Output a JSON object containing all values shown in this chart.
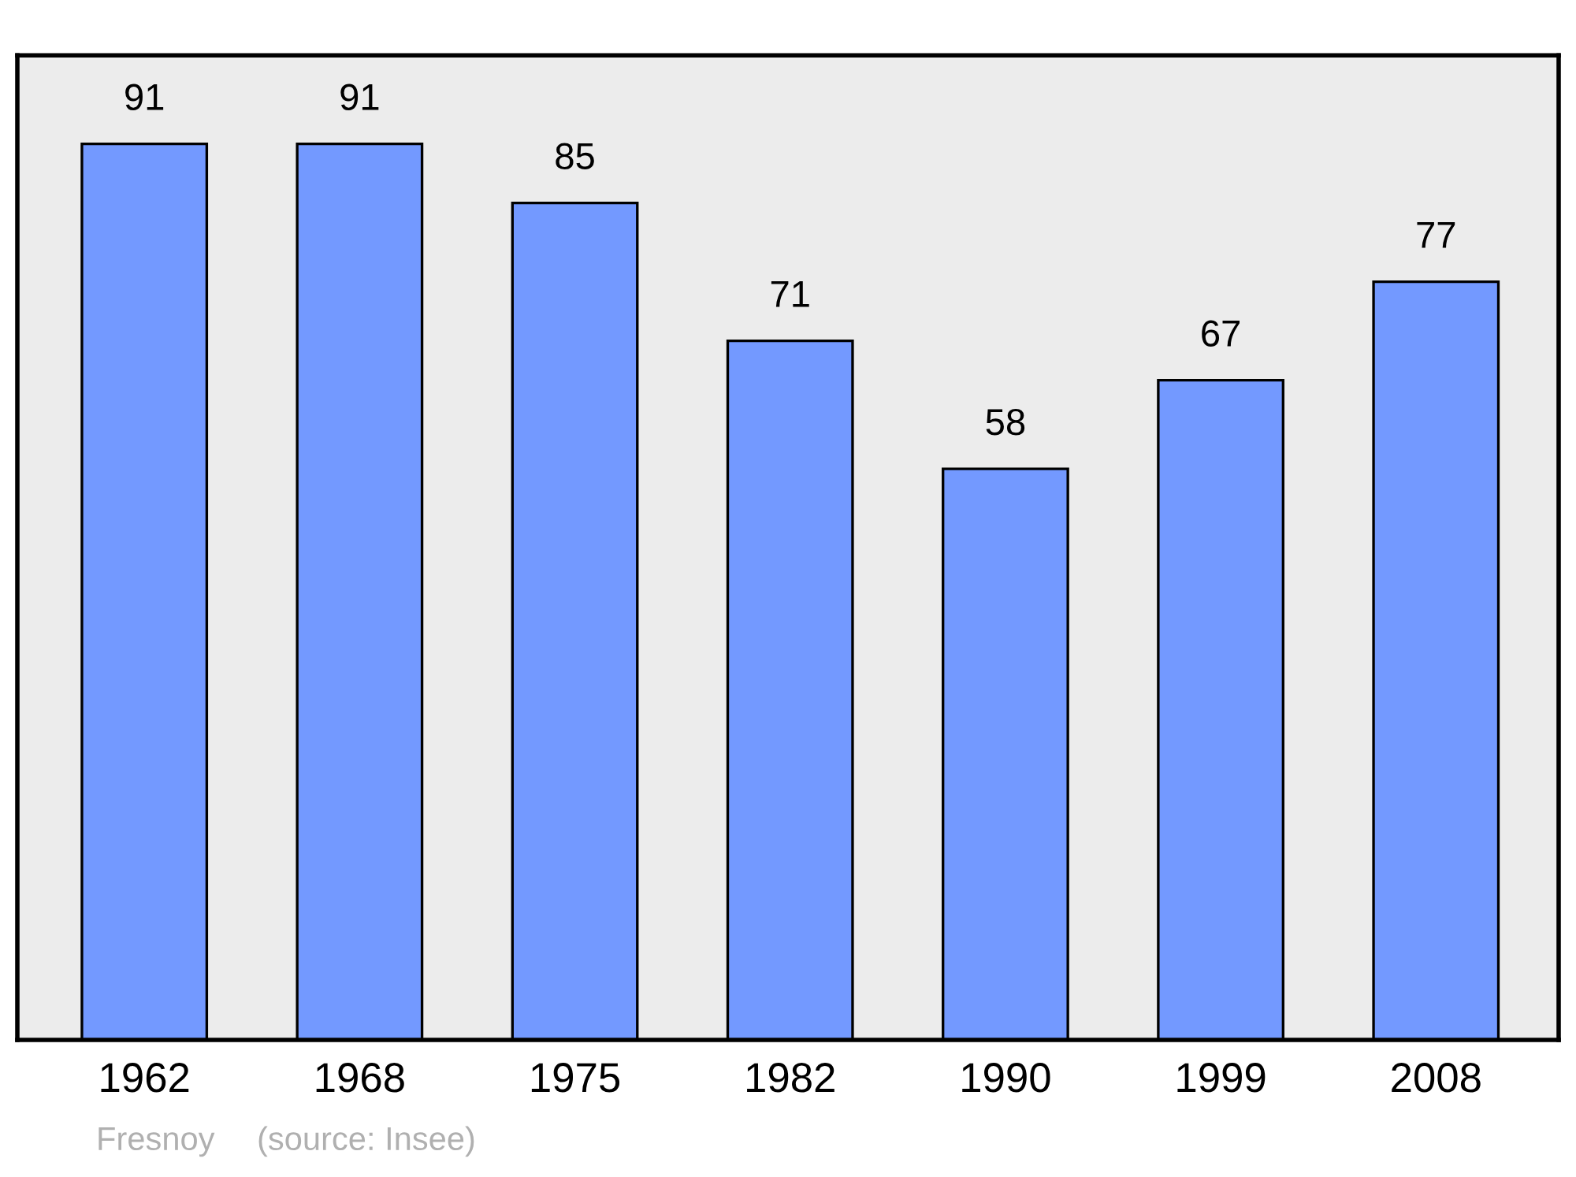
{
  "chart_data": {
    "type": "bar",
    "categories": [
      "1962",
      "1968",
      "1975",
      "1982",
      "1990",
      "1999",
      "2008"
    ],
    "values": [
      91,
      91,
      85,
      71,
      58,
      67,
      77
    ],
    "color": "#7399ff",
    "data_labels": true,
    "ylim": [
      0,
      100
    ],
    "tick_labels": "x",
    "grid": false,
    "legend": false,
    "annotations": [
      "Fresnoy",
      "(source: Insee)"
    ]
  }
}
